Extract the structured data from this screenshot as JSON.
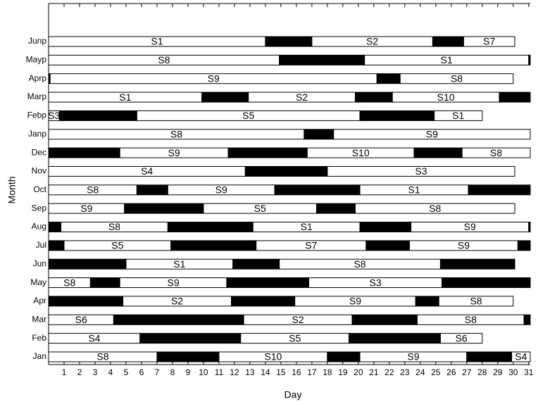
{
  "chart_data": {
    "type": "timeline",
    "xlabel": "Day",
    "ylabel": "Month",
    "xlim": [
      0,
      31.1
    ],
    "xticks": [
      1,
      2,
      3,
      4,
      5,
      6,
      7,
      8,
      9,
      10,
      11,
      12,
      13,
      14,
      15,
      16,
      17,
      18,
      19,
      20,
      21,
      22,
      23,
      24,
      25,
      26,
      27,
      28,
      29,
      30,
      31
    ],
    "rows": [
      {
        "label": "Jan",
        "segments": [
          {
            "start": 0,
            "end": 7,
            "color": "#ffffff",
            "label": "S8"
          },
          {
            "start": 7,
            "end": 11,
            "color": "#000000"
          },
          {
            "start": 11,
            "end": 18,
            "color": "#ffffff",
            "label": "S10"
          },
          {
            "start": 18,
            "end": 20.1,
            "color": "#000000"
          },
          {
            "start": 20.1,
            "end": 27,
            "color": "#ffffff",
            "label": "S9"
          },
          {
            "start": 27,
            "end": 29.9,
            "color": "#000000"
          },
          {
            "start": 29.9,
            "end": 31.1,
            "color": "#ffffff",
            "label": "S4"
          }
        ]
      },
      {
        "label": "Feb",
        "segments": [
          {
            "start": 0,
            "end": 5.9,
            "color": "#ffffff",
            "label": "S4"
          },
          {
            "start": 5.9,
            "end": 12.4,
            "color": "#000000"
          },
          {
            "start": 12.4,
            "end": 19.4,
            "color": "#ffffff",
            "label": "S5"
          },
          {
            "start": 19.4,
            "end": 25.3,
            "color": "#000000"
          },
          {
            "start": 25.3,
            "end": 28,
            "color": "#ffffff",
            "label": "S6"
          }
        ]
      },
      {
        "label": "Mar",
        "segments": [
          {
            "start": 0,
            "end": 4.2,
            "color": "#ffffff",
            "label": "S6"
          },
          {
            "start": 4.2,
            "end": 12.6,
            "color": "#000000"
          },
          {
            "start": 12.6,
            "end": 19.6,
            "color": "#ffffff",
            "label": "S2"
          },
          {
            "start": 19.6,
            "end": 23.8,
            "color": "#000000"
          },
          {
            "start": 23.8,
            "end": 30.7,
            "color": "#ffffff",
            "label": "S8"
          },
          {
            "start": 30.7,
            "end": 31.1,
            "color": "#000000"
          }
        ]
      },
      {
        "label": "Apr",
        "segments": [
          {
            "start": 0,
            "end": 4.8,
            "color": "#000000"
          },
          {
            "start": 4.8,
            "end": 11.8,
            "color": "#ffffff",
            "label": "S2"
          },
          {
            "start": 11.8,
            "end": 15.9,
            "color": "#000000"
          },
          {
            "start": 15.9,
            "end": 23.7,
            "color": "#ffffff",
            "label": "S9"
          },
          {
            "start": 23.7,
            "end": 25.2,
            "color": "#000000"
          },
          {
            "start": 25.2,
            "end": 30,
            "color": "#ffffff",
            "label": "S8"
          }
        ]
      },
      {
        "label": "May",
        "segments": [
          {
            "start": 0,
            "end": 2.7,
            "color": "#ffffff",
            "label": "S8"
          },
          {
            "start": 2.7,
            "end": 4.6,
            "color": "#000000"
          },
          {
            "start": 4.6,
            "end": 11.5,
            "color": "#ffffff",
            "label": "S9"
          },
          {
            "start": 11.5,
            "end": 16.8,
            "color": "#000000"
          },
          {
            "start": 16.8,
            "end": 25.4,
            "color": "#ffffff",
            "label": "S3"
          },
          {
            "start": 25.4,
            "end": 31.1,
            "color": "#000000"
          }
        ]
      },
      {
        "label": "Jun",
        "segments": [
          {
            "start": 0,
            "end": 5,
            "color": "#000000"
          },
          {
            "start": 5,
            "end": 11.9,
            "color": "#ffffff",
            "label": "S1"
          },
          {
            "start": 11.9,
            "end": 14.9,
            "color": "#000000"
          },
          {
            "start": 14.9,
            "end": 25.3,
            "color": "#ffffff",
            "label": "S8"
          },
          {
            "start": 25.3,
            "end": 30.1,
            "color": "#000000"
          }
        ]
      },
      {
        "label": "Jul",
        "segments": [
          {
            "start": 0,
            "end": 1,
            "color": "#000000"
          },
          {
            "start": 1,
            "end": 7.9,
            "color": "#ffffff",
            "label": "S5"
          },
          {
            "start": 7.9,
            "end": 13.4,
            "color": "#000000"
          },
          {
            "start": 13.4,
            "end": 20.5,
            "color": "#ffffff",
            "label": "S7"
          },
          {
            "start": 20.5,
            "end": 23.3,
            "color": "#000000"
          },
          {
            "start": 23.3,
            "end": 30.3,
            "color": "#ffffff",
            "label": "S9"
          },
          {
            "start": 30.3,
            "end": 31.1,
            "color": "#000000"
          }
        ]
      },
      {
        "label": "Aug",
        "segments": [
          {
            "start": 0,
            "end": 0.8,
            "color": "#000000"
          },
          {
            "start": 0.8,
            "end": 7.7,
            "color": "#ffffff",
            "label": "S8"
          },
          {
            "start": 7.7,
            "end": 13.2,
            "color": "#000000"
          },
          {
            "start": 13.2,
            "end": 20.1,
            "color": "#ffffff",
            "label": "S1"
          },
          {
            "start": 20.1,
            "end": 23.4,
            "color": "#000000"
          },
          {
            "start": 23.4,
            "end": 31,
            "color": "#ffffff",
            "label": "S9"
          },
          {
            "start": 31,
            "end": 31.1,
            "color": "#000000"
          }
        ]
      },
      {
        "label": "Sep",
        "segments": [
          {
            "start": 0,
            "end": 4.9,
            "color": "#ffffff",
            "label": "S9"
          },
          {
            "start": 4.9,
            "end": 10,
            "color": "#000000"
          },
          {
            "start": 10,
            "end": 17.3,
            "color": "#ffffff",
            "label": "S5"
          },
          {
            "start": 17.3,
            "end": 19.8,
            "color": "#000000"
          },
          {
            "start": 19.8,
            "end": 30.1,
            "color": "#ffffff",
            "label": "S8"
          }
        ]
      },
      {
        "label": "Oct",
        "segments": [
          {
            "start": 0,
            "end": 5.7,
            "color": "#ffffff",
            "label": "S8"
          },
          {
            "start": 5.7,
            "end": 7.7,
            "color": "#000000"
          },
          {
            "start": 7.7,
            "end": 14.6,
            "color": "#ffffff",
            "label": "S9"
          },
          {
            "start": 14.6,
            "end": 20.1,
            "color": "#000000"
          },
          {
            "start": 20.1,
            "end": 27.1,
            "color": "#ffffff",
            "label": "S1"
          },
          {
            "start": 27.1,
            "end": 31.1,
            "color": "#000000"
          }
        ]
      },
      {
        "label": "Nov",
        "segments": [
          {
            "start": 0,
            "end": 12.7,
            "color": "#ffffff",
            "label": "S4"
          },
          {
            "start": 12.7,
            "end": 18,
            "color": "#000000"
          },
          {
            "start": 18,
            "end": 30.1,
            "color": "#ffffff",
            "label": "S3"
          }
        ]
      },
      {
        "label": "Dec",
        "segments": [
          {
            "start": 0,
            "end": 4.6,
            "color": "#000000"
          },
          {
            "start": 4.6,
            "end": 11.6,
            "color": "#ffffff",
            "label": "S9"
          },
          {
            "start": 11.6,
            "end": 16.7,
            "color": "#000000"
          },
          {
            "start": 16.7,
            "end": 23.6,
            "color": "#ffffff",
            "label": "S10"
          },
          {
            "start": 23.6,
            "end": 26.7,
            "color": "#000000"
          },
          {
            "start": 26.7,
            "end": 31.1,
            "color": "#ffffff",
            "label": "S8"
          }
        ]
      },
      {
        "label": "Janp",
        "segments": [
          {
            "start": 0,
            "end": 16.5,
            "color": "#ffffff",
            "label": "S8"
          },
          {
            "start": 16.5,
            "end": 18.4,
            "color": "#000000"
          },
          {
            "start": 18.4,
            "end": 31.1,
            "color": "#ffffff",
            "label": "S9"
          }
        ]
      },
      {
        "label": "Febp",
        "segments": [
          {
            "start": 0,
            "end": 0.7,
            "color": "#ffffff",
            "label": "S3"
          },
          {
            "start": 0.7,
            "end": 5.7,
            "color": "#000000"
          },
          {
            "start": 5.7,
            "end": 20.1,
            "color": "#ffffff",
            "label": "S5"
          },
          {
            "start": 20.1,
            "end": 24.9,
            "color": "#000000"
          },
          {
            "start": 24.9,
            "end": 28,
            "color": "#ffffff",
            "label": "S1"
          }
        ]
      },
      {
        "label": "Marp",
        "segments": [
          {
            "start": 0,
            "end": 9.9,
            "color": "#ffffff",
            "label": "S1"
          },
          {
            "start": 9.9,
            "end": 12.9,
            "color": "#000000"
          },
          {
            "start": 12.9,
            "end": 19.8,
            "color": "#ffffff",
            "label": "S2"
          },
          {
            "start": 19.8,
            "end": 22.2,
            "color": "#000000"
          },
          {
            "start": 22.2,
            "end": 29.1,
            "color": "#ffffff",
            "label": "S10"
          },
          {
            "start": 29.1,
            "end": 31.1,
            "color": "#000000"
          }
        ]
      },
      {
        "label": "Aprp",
        "segments": [
          {
            "start": 0,
            "end": 0.1,
            "color": "#000000"
          },
          {
            "start": 0.1,
            "end": 21.2,
            "color": "#ffffff",
            "label": "S9"
          },
          {
            "start": 21.2,
            "end": 22.7,
            "color": "#000000"
          },
          {
            "start": 22.7,
            "end": 30,
            "color": "#ffffff",
            "label": "S8"
          }
        ]
      },
      {
        "label": "Mayp",
        "segments": [
          {
            "start": 0,
            "end": 14.9,
            "color": "#ffffff",
            "label": "S8"
          },
          {
            "start": 14.9,
            "end": 20.4,
            "color": "#000000"
          },
          {
            "start": 20.4,
            "end": 31,
            "color": "#ffffff",
            "label": "S1"
          },
          {
            "start": 31,
            "end": 31.1,
            "color": "#000000"
          }
        ]
      },
      {
        "label": "Junp",
        "segments": [
          {
            "start": 0,
            "end": 14,
            "color": "#ffffff",
            "label": "S1"
          },
          {
            "start": 14,
            "end": 17,
            "color": "#000000"
          },
          {
            "start": 17,
            "end": 24.8,
            "color": "#ffffff",
            "label": "S2"
          },
          {
            "start": 24.8,
            "end": 26.8,
            "color": "#000000"
          },
          {
            "start": 26.8,
            "end": 30.1,
            "color": "#ffffff",
            "label": "S7"
          }
        ]
      }
    ]
  }
}
